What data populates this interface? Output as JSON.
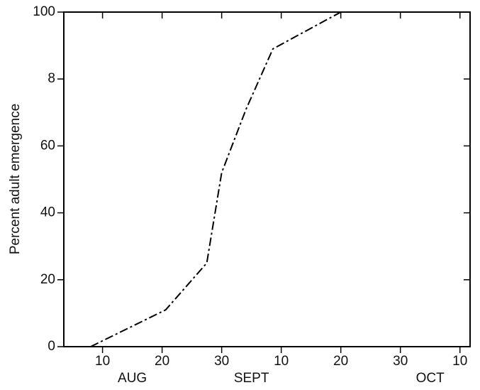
{
  "chart_data": {
    "type": "line",
    "y_label": "Percent adult emergence",
    "x": [
      8,
      20.6,
      27.5,
      30,
      34.1,
      38.6,
      50
    ],
    "series": [
      {
        "color": "#000000",
        "values": [
          0,
          11,
          25,
          52,
          71,
          89,
          100
        ]
      }
    ],
    "xlim": [
      3.5,
      71.7
    ],
    "xticks": [
      {
        "value": 10,
        "label": "10"
      },
      {
        "value": 20,
        "label": "20"
      },
      {
        "value": 30,
        "label": "30"
      },
      {
        "value": 40,
        "label": "10"
      },
      {
        "value": 50,
        "label": "20"
      },
      {
        "value": 60,
        "label": "30"
      },
      {
        "value": 70,
        "label": "10"
      }
    ],
    "months": [
      "AUG",
      "SEPT",
      "OCT"
    ],
    "ylim": [
      0,
      100
    ],
    "yticks": [
      0,
      20,
      40,
      60,
      {
        "value": 80,
        "label": "8"
      },
      100
    ]
  }
}
